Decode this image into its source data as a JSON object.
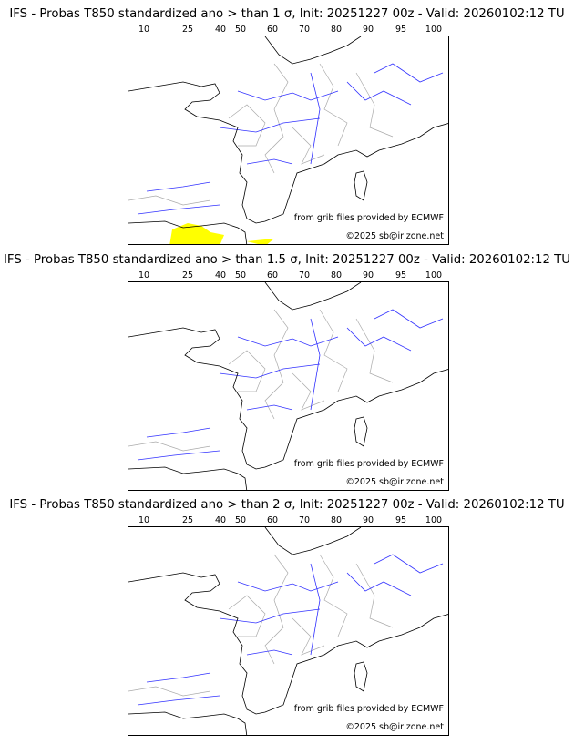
{
  "colorbar": {
    "ticks": [
      "10",
      "25",
      "40",
      "50",
      "60",
      "70",
      "80",
      "90",
      "95",
      "100"
    ],
    "colors": [
      "#ffff00",
      "#ffd700",
      "#ffaa00",
      "#ff8c00",
      "#ff6600",
      "#ff2000",
      "#d40000",
      "#900000",
      "#600000"
    ]
  },
  "panels": [
    {
      "title": "IFS - Probas T850  standardized ano > than 1 σ, Init: 20251227 00z - Valid: 20260102:12 TU",
      "has_yellow": true
    },
    {
      "title": "IFS - Probas T850  standardized ano > than 1.5 σ, Init: 20251227 00z - Valid: 20260102:12 TU",
      "has_yellow": false
    },
    {
      "title": "IFS - Probas T850  standardized ano > than 2 σ, Init: 20251227 00z - Valid: 20260102:12 TU",
      "has_yellow": false
    }
  ],
  "credits": {
    "source": "from grib files provided by ECMWF",
    "copyright": "©2025 sb@irizone.net"
  }
}
